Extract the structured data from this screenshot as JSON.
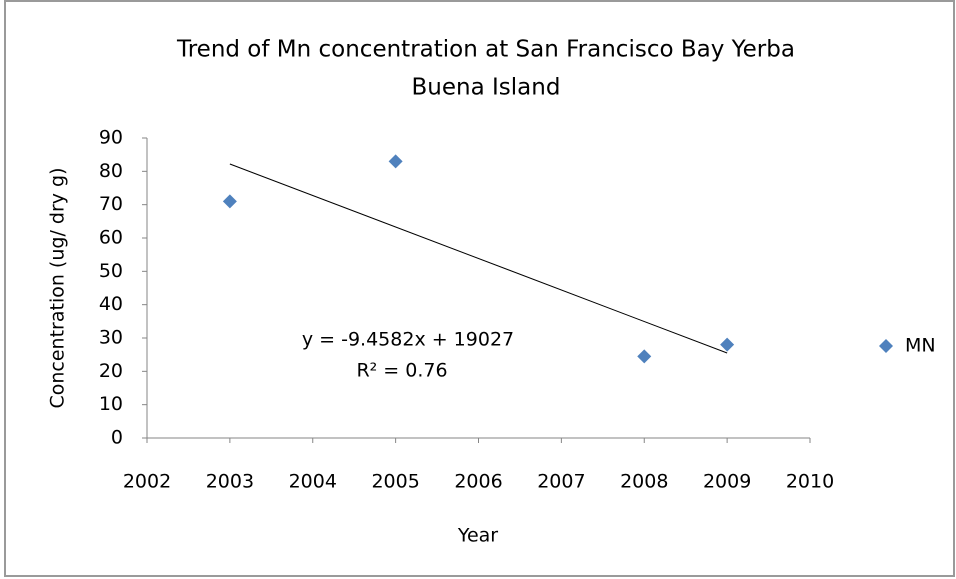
{
  "chart_data": {
    "type": "scatter",
    "title": [
      "Trend of Mn concentration at San Francisco Bay Yerba",
      "Buena Island"
    ],
    "x_label": "Year",
    "y_label": "Concentration (ug/ dry g)",
    "series": [
      {
        "name": "MN",
        "color": "#4f81bd",
        "x": [
          2003,
          2005,
          2008,
          2009
        ],
        "values": [
          71,
          83,
          24.5,
          28
        ]
      }
    ],
    "trendline": {
      "x": [
        2003,
        2009
      ],
      "values": [
        82.2,
        25.5
      ],
      "color": "#000000"
    },
    "annotations": [
      "y = -9.4582x + 19027",
      "R² = 0.76"
    ],
    "xlim": [
      2002,
      2010
    ],
    "xticks": [
      2002,
      2003,
      2004,
      2005,
      2006,
      2007,
      2008,
      2009,
      2010
    ],
    "ylim": [
      0,
      90
    ],
    "yticks": [
      0,
      10,
      20,
      30,
      40,
      50,
      60,
      70,
      80,
      90
    ],
    "legend": "right",
    "grid": false
  }
}
